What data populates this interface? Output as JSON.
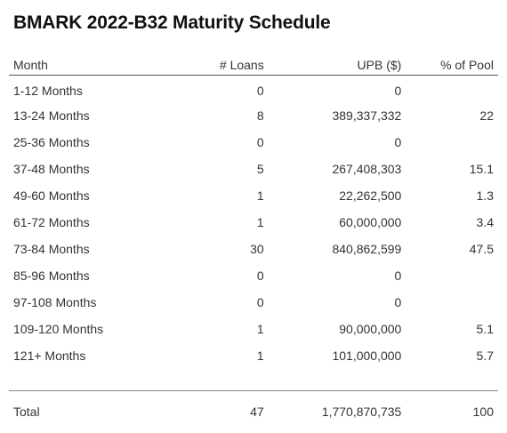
{
  "title": "BMARK 2022-B32 Maturity Schedule",
  "columns": {
    "month": "Month",
    "loans": "# Loans",
    "upb": "UPB ($)",
    "pct": "% of Pool"
  },
  "rows": [
    {
      "month": "1-12 Months",
      "loans": "0",
      "upb": "0",
      "pct": ""
    },
    {
      "month": "13-24 Months",
      "loans": "8",
      "upb": "389,337,332",
      "pct": "22"
    },
    {
      "month": "25-36 Months",
      "loans": "0",
      "upb": "0",
      "pct": ""
    },
    {
      "month": "37-48 Months",
      "loans": "5",
      "upb": "267,408,303",
      "pct": "15.1"
    },
    {
      "month": "49-60 Months",
      "loans": "1",
      "upb": "22,262,500",
      "pct": "1.3"
    },
    {
      "month": "61-72 Months",
      "loans": "1",
      "upb": "60,000,000",
      "pct": "3.4"
    },
    {
      "month": "73-84 Months",
      "loans": "30",
      "upb": "840,862,599",
      "pct": "47.5"
    },
    {
      "month": "85-96 Months",
      "loans": "0",
      "upb": "0",
      "pct": ""
    },
    {
      "month": "97-108 Months",
      "loans": "0",
      "upb": "0",
      "pct": ""
    },
    {
      "month": "109-120 Months",
      "loans": "1",
      "upb": "90,000,000",
      "pct": "5.1"
    },
    {
      "month": "121+ Months",
      "loans": "1",
      "upb": "101,000,000",
      "pct": "5.7"
    }
  ],
  "total": {
    "label": "Total",
    "loans": "47",
    "upb": "1,770,870,735",
    "pct": "100"
  }
}
